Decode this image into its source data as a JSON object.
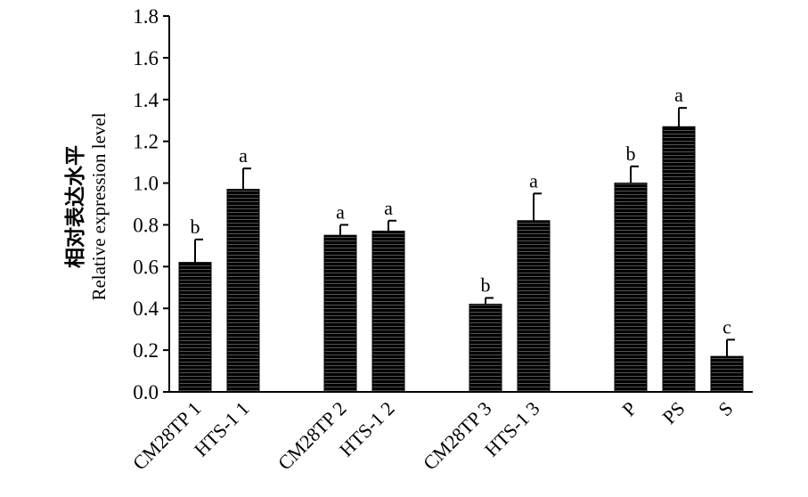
{
  "chart_data": {
    "type": "bar",
    "ylabel": [
      "相对表达水平",
      "Relative expression level"
    ],
    "categories": [
      "CM28TP 1",
      "HTS-1 1",
      "CM28TP 2",
      "HTS-1 2",
      "CM28TP 3",
      "HTS-1 3",
      "P",
      "PS",
      "S"
    ],
    "values": [
      0.62,
      0.97,
      0.75,
      0.77,
      0.42,
      0.82,
      1.0,
      1.27,
      0.17
    ],
    "errors": [
      0.11,
      0.1,
      0.05,
      0.05,
      0.03,
      0.13,
      0.08,
      0.09,
      0.08
    ],
    "letters": [
      "b",
      "a",
      "a",
      "a",
      "b",
      "a",
      "b",
      "a",
      "c"
    ],
    "color": "#000000",
    "ylim": [
      0,
      1.8
    ],
    "yticks": [
      {
        "value": 0,
        "label": "0.0"
      },
      0.2,
      0.4,
      0.6,
      0.8,
      {
        "value": 1,
        "label": "1.0"
      },
      1.2,
      1.4,
      1.6,
      1.8
    ]
  }
}
